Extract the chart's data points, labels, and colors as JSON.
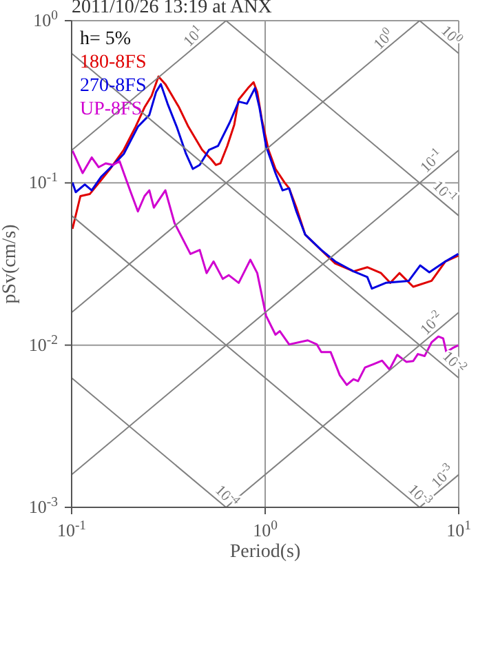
{
  "chart_data": {
    "type": "line",
    "title": "2011/10/26 13:19 at ANX",
    "xlabel": "Period(s)",
    "ylabel": "pSv(cm/s)",
    "log": "xy",
    "grid": true,
    "legend": "top left",
    "marker": "none",
    "line_style": "solid",
    "xlim": [
      0.1,
      10
    ],
    "xticks": [
      {
        "value": 0.1,
        "label": "10$^{-1}$"
      },
      {
        "value": 1,
        "label": "10$^{0}$"
      },
      {
        "value": 10,
        "label": "10$^{1}$"
      }
    ],
    "ylim": [
      0.001,
      1
    ],
    "yticks": [
      {
        "value": 0.001,
        "label": "10$^{-3}$"
      },
      {
        "value": 0.01,
        "label": "10$^{-2}$"
      },
      {
        "value": 0.1,
        "label": "10$^{-1}$"
      },
      {
        "value": 1,
        "label": "10$^{0}$"
      }
    ],
    "series": [
      {
        "name": "180-8FS",
        "color": "#e00000",
        "x": [
          0.101,
          0.111,
          0.124,
          0.142,
          0.158,
          0.186,
          0.214,
          0.238,
          0.259,
          0.281,
          0.305,
          0.331,
          0.359,
          0.401,
          0.472,
          0.526,
          0.556,
          0.587,
          0.637,
          0.692,
          0.73,
          0.815,
          0.871,
          0.91,
          0.96,
          1.04,
          1.13,
          1.26,
          1.33,
          1.45,
          1.61,
          1.9,
          2.3,
          2.86,
          3.37,
          3.97,
          4.43,
          4.94,
          5.82,
          7.24,
          8.53,
          9.95
        ],
        "values": [
          0.0521,
          0.0829,
          0.0853,
          0.104,
          0.122,
          0.16,
          0.222,
          0.292,
          0.344,
          0.453,
          0.406,
          0.344,
          0.292,
          0.222,
          0.16,
          0.14,
          0.129,
          0.132,
          0.169,
          0.228,
          0.326,
          0.384,
          0.417,
          0.363,
          0.248,
          0.16,
          0.122,
          0.1005,
          0.0926,
          0.0704,
          0.048,
          0.0396,
          0.0319,
          0.0285,
          0.0302,
          0.0278,
          0.0242,
          0.0278,
          0.0229,
          0.0249,
          0.0328,
          0.0356
        ]
      },
      {
        "name": "270-8FS",
        "color": "#0000e0",
        "x": [
          0.101,
          0.105,
          0.117,
          0.127,
          0.142,
          0.167,
          0.186,
          0.22,
          0.252,
          0.273,
          0.289,
          0.313,
          0.349,
          0.39,
          0.423,
          0.459,
          0.513,
          0.571,
          0.655,
          0.73,
          0.805,
          0.885,
          0.934,
          1.01,
          1.13,
          1.23,
          1.33,
          1.45,
          1.61,
          1.95,
          2.3,
          2.86,
          3.37,
          3.56,
          4.2,
          5.52,
          6.32,
          7.05,
          8.53,
          9.95
        ],
        "values": [
          0.1005,
          0.0877,
          0.0977,
          0.09,
          0.109,
          0.132,
          0.151,
          0.222,
          0.262,
          0.363,
          0.406,
          0.308,
          0.222,
          0.151,
          0.122,
          0.129,
          0.16,
          0.169,
          0.235,
          0.317,
          0.308,
          0.384,
          0.292,
          0.169,
          0.115,
          0.09,
          0.0926,
          0.0667,
          0.048,
          0.0386,
          0.0328,
          0.0285,
          0.0263,
          0.0223,
          0.0242,
          0.0249,
          0.031,
          0.0281,
          0.0328,
          0.0365
        ]
      },
      {
        "name": "UP-8FS",
        "color": "#d000d0",
        "x": [
          0.101,
          0.114,
          0.127,
          0.138,
          0.15,
          0.163,
          0.177,
          0.186,
          0.202,
          0.22,
          0.238,
          0.252,
          0.266,
          0.305,
          0.34,
          0.411,
          0.459,
          0.498,
          0.541,
          0.604,
          0.648,
          0.73,
          0.838,
          0.91,
          1.01,
          1.13,
          1.19,
          1.33,
          1.66,
          1.85,
          1.95,
          2.18,
          2.43,
          2.64,
          2.86,
          3.02,
          3.28,
          3.66,
          4.02,
          4.39,
          4.81,
          5.36,
          5.82,
          6.15,
          6.67,
          7.24,
          7.85,
          8.31,
          8.63,
          9.27,
          9.95
        ],
        "values": [
          0.158,
          0.115,
          0.1435,
          0.125,
          0.132,
          0.129,
          0.136,
          0.115,
          0.0877,
          0.0667,
          0.0829,
          0.09,
          0.0704,
          0.09,
          0.0566,
          0.0365,
          0.0386,
          0.0278,
          0.0328,
          0.0256,
          0.027,
          0.0242,
          0.0336,
          0.0278,
          0.0152,
          0.0116,
          0.0122,
          0.0101,
          0.0107,
          0.0101,
          0.00905,
          0.00905,
          0.00652,
          0.00569,
          0.00617,
          0.006,
          0.00728,
          0.00767,
          0.00802,
          0.00708,
          0.00871,
          0.00789,
          0.00798,
          0.00881,
          0.00857,
          0.0104,
          0.0113,
          0.011,
          0.00905,
          0.00957,
          0.00998
        ]
      },
      {
        "color": "#808080",
        "x": [
          0.1,
          0.628
        ],
        "values": [
          0.159,
          1
        ]
      },
      {
        "color": "#808080",
        "x": [
          0.1,
          6.28
        ],
        "values": [
          0.0159,
          1
        ]
      },
      {
        "color": "#808080",
        "x": [
          0.1,
          10
        ],
        "values": [
          0.00159,
          0.159
        ]
      },
      {
        "color": "#808080",
        "x": [
          0.628,
          10
        ],
        "values": [
          0.001,
          0.0159
        ]
      },
      {
        "color": "#808080",
        "x": [
          6.28,
          10
        ],
        "values": [
          0.001,
          0.00159
        ]
      },
      {
        "color": "#808080",
        "x": [
          6.28,
          10
        ],
        "values": [
          1,
          0.628
        ]
      },
      {
        "color": "#808080",
        "x": [
          0.628,
          10
        ],
        "values": [
          1,
          0.0628
        ]
      },
      {
        "color": "#808080",
        "x": [
          0.1,
          10
        ],
        "values": [
          0.628,
          0.00628
        ]
      },
      {
        "color": "#808080",
        "x": [
          0.1,
          6.28
        ],
        "values": [
          0.0628,
          0.001
        ]
      },
      {
        "color": "#808080",
        "x": [
          0.1,
          0.628
        ],
        "values": [
          0.00628,
          0.001
        ]
      }
    ],
    "annotations": [
      "h= 5%",
      {
        "text": "10$^{1}$",
        "x": 0.459,
        "y": 0.73
      },
      {
        "text": "10$^{0}$",
        "x": 4.41,
        "y": 0.702
      },
      {
        "text": "10$^{-1}$",
        "x": 7.82,
        "y": 0.1245
      },
      {
        "text": "10$^{-2}$",
        "x": 7.82,
        "y": 0.01245
      },
      {
        "text": "10$^{-3}$",
        "x": 8.91,
        "y": 0.001418
      },
      {
        "text": "10$^{0}$",
        "x": 8.49,
        "y": 0.74
      },
      {
        "text": "10$^{-1}$",
        "x": 7.82,
        "y": 0.0803
      },
      {
        "text": "10$^{-2}$",
        "x": 8.77,
        "y": 0.00716
      },
      {
        "text": "10$^{-3}$",
        "x": 5.82,
        "y": 0.00108
      },
      {
        "text": "10$^{-4}$",
        "x": 0.587,
        "y": 0.00107
      }
    ]
  }
}
